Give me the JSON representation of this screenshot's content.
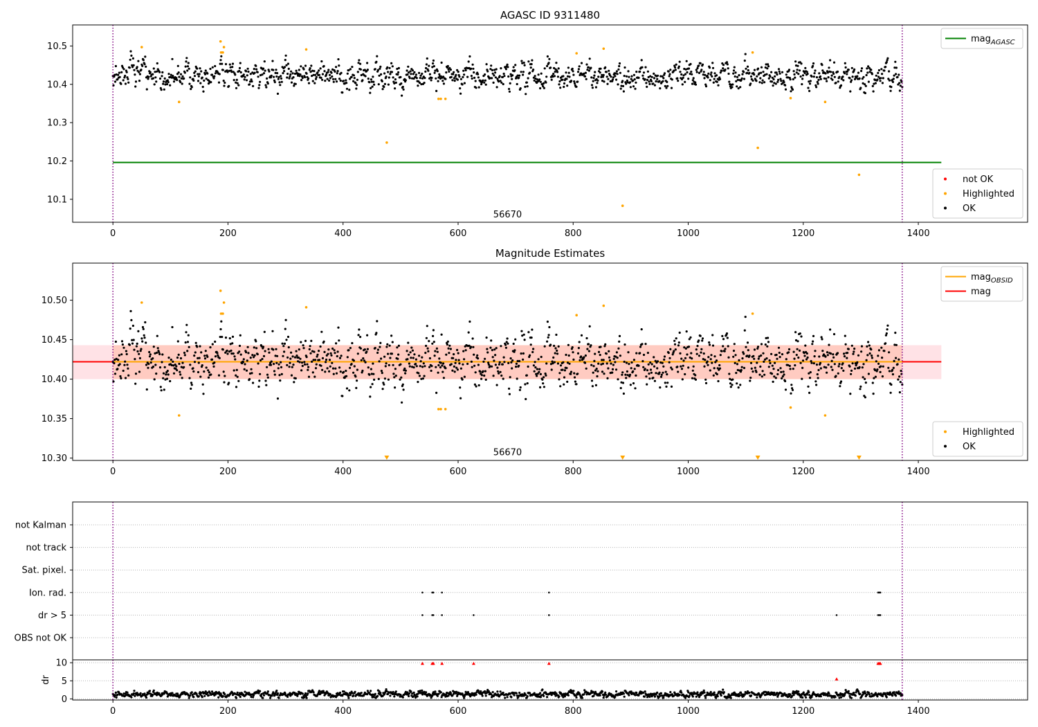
{
  "chart_data": [
    {
      "id": "agasc",
      "type": "scatter",
      "title": "AGASC ID 9311480",
      "xlim": [
        -70,
        1590
      ],
      "ylim": [
        10.04,
        10.555
      ],
      "xticks": [
        0,
        200,
        400,
        600,
        800,
        1000,
        1200,
        1400
      ],
      "yticks": [
        10.1,
        10.2,
        10.3,
        10.4,
        10.5
      ],
      "ytick_labels": [
        "10.1",
        "10.2",
        "10.3",
        "10.4",
        "10.5"
      ],
      "vlines": [
        0,
        1372
      ],
      "vline_color": "#800080",
      "annotation": {
        "text": "56670",
        "x": 686,
        "y": 10.06
      },
      "hlines": [
        {
          "name": "mag_AGASC",
          "y": 10.196,
          "color": "#008000",
          "xmin": 0,
          "xmax": 1440
        }
      ],
      "line_legend": {
        "position": "top-right",
        "items": [
          {
            "label": "mag",
            "sub": "AGASC",
            "color": "#008000"
          }
        ]
      },
      "point_legend": {
        "position": "lower-right",
        "items": [
          {
            "label": "not OK",
            "color": "#ff0000"
          },
          {
            "label": "Highlighted",
            "color": "#ffa500"
          },
          {
            "label": "OK",
            "color": "#000000"
          }
        ]
      },
      "series": [
        {
          "name": "OK",
          "color": "#000000",
          "generated": {
            "n": 1370,
            "x_range": [
              0,
              1372
            ],
            "center": 10.422,
            "spread": 0.018
          }
        },
        {
          "name": "Highlighted",
          "color": "#ffa500",
          "points": [
            [
              50,
              10.497
            ],
            [
              115,
              10.354
            ],
            [
              187,
              10.512
            ],
            [
              188,
              10.483
            ],
            [
              191,
              10.483
            ],
            [
              193,
              10.497
            ],
            [
              336,
              10.491
            ],
            [
              476,
              10.248
            ],
            [
              566,
              10.362
            ],
            [
              570,
              10.362
            ],
            [
              578,
              10.362
            ],
            [
              806,
              10.481
            ],
            [
              853,
              10.493
            ],
            [
              886,
              10.083
            ],
            [
              1112,
              10.483
            ],
            [
              1121,
              10.234
            ],
            [
              1178,
              10.364
            ],
            [
              1238,
              10.354
            ],
            [
              1297,
              10.164
            ]
          ]
        }
      ]
    },
    {
      "id": "estimates",
      "type": "scatter",
      "title": "Magnitude Estimates",
      "xlim": [
        -70,
        1590
      ],
      "ylim": [
        10.297,
        10.547
      ],
      "xticks": [
        0,
        200,
        400,
        600,
        800,
        1000,
        1200,
        1400
      ],
      "yticks": [
        10.3,
        10.35,
        10.4,
        10.45,
        10.5
      ],
      "ytick_labels": [
        "10.30",
        "10.35",
        "10.40",
        "10.45",
        "10.50"
      ],
      "vlines": [
        0,
        1372
      ],
      "vline_color": "#800080",
      "annotation": {
        "text": "56670",
        "x": 686,
        "y": 10.307
      },
      "band": {
        "xmin": -70,
        "xmax": 1440,
        "ymin": 10.4,
        "ymax": 10.443,
        "color": "#ffb6c1",
        "inner_xmax": 1372,
        "inner_color": "#ffa07a"
      },
      "hlines": [
        {
          "name": "mag",
          "y": 10.422,
          "color": "#ff0000",
          "xmin": -70,
          "xmax": 1440
        },
        {
          "name": "mag_OBSID",
          "y": 10.422,
          "color": "#ffa500",
          "xmin": 0,
          "xmax": 1372
        }
      ],
      "line_legend": {
        "position": "top-right",
        "items": [
          {
            "label": "mag",
            "sub": "OBSID",
            "color": "#ffa500"
          },
          {
            "label": "mag",
            "sub": "",
            "color": "#ff0000"
          }
        ]
      },
      "point_legend": {
        "position": "lower-right",
        "items": [
          {
            "label": "Highlighted",
            "color": "#ffa500"
          },
          {
            "label": "OK",
            "color": "#000000"
          }
        ]
      },
      "offscale_markers": {
        "color": "#ffa500",
        "x": [
          476,
          886,
          1121,
          1297
        ]
      },
      "series": [
        {
          "name": "OK",
          "color": "#000000",
          "generated": {
            "n": 1370,
            "x_range": [
              0,
              1372
            ],
            "center": 10.422,
            "spread": 0.018
          }
        },
        {
          "name": "Highlighted",
          "color": "#ffa500",
          "points": [
            [
              50,
              10.497
            ],
            [
              115,
              10.354
            ],
            [
              187,
              10.512
            ],
            [
              188,
              10.483
            ],
            [
              191,
              10.483
            ],
            [
              193,
              10.497
            ],
            [
              336,
              10.491
            ],
            [
              566,
              10.362
            ],
            [
              570,
              10.362
            ],
            [
              578,
              10.362
            ],
            [
              806,
              10.481
            ],
            [
              853,
              10.493
            ],
            [
              1112,
              10.483
            ],
            [
              1178,
              10.364
            ],
            [
              1238,
              10.354
            ]
          ]
        }
      ]
    },
    {
      "id": "flags",
      "type": "scatter",
      "xlim": [
        -70,
        1590
      ],
      "vlines": [
        0,
        1372
      ],
      "vline_color": "#800080",
      "categories": [
        "not Kalman",
        "not track",
        "Sat. pixel.",
        "Ion. rad.",
        "dr > 5",
        "OBS not OK"
      ],
      "flagged": {
        "Ion. rad.": [
          538,
          555,
          557,
          572,
          758,
          1330,
          1332,
          1334
        ],
        "dr > 5": [
          538,
          555,
          557,
          572,
          627,
          758,
          1258,
          1330,
          1332,
          1334
        ]
      }
    },
    {
      "id": "dr",
      "type": "scatter",
      "ylabel": "dr",
      "xlim": [
        -70,
        1590
      ],
      "ylim": [
        -0.3,
        10.8
      ],
      "xticks": [
        0,
        200,
        400,
        600,
        800,
        1000,
        1200,
        1400
      ],
      "yticks": [
        0,
        5,
        10
      ],
      "ytick_labels": [
        "0",
        "5",
        "10"
      ],
      "vlines": [
        0,
        1372
      ],
      "vline_color": "#800080",
      "series": [
        {
          "name": "dr",
          "color": "#000000",
          "generated": {
            "n": 1370,
            "x_range": [
              0,
              1372
            ],
            "center": 1.3,
            "spread": 0.5
          }
        },
        {
          "name": "dr > 5",
          "color": "#ff0000",
          "points": [
            [
              538,
              9.8
            ],
            [
              555,
              9.8
            ],
            [
              557,
              9.8
            ],
            [
              572,
              9.8
            ],
            [
              627,
              9.8
            ],
            [
              758,
              9.8
            ],
            [
              1258,
              5.5
            ],
            [
              1330,
              9.8
            ],
            [
              1332,
              9.8
            ],
            [
              1334,
              9.8
            ]
          ]
        }
      ]
    }
  ]
}
